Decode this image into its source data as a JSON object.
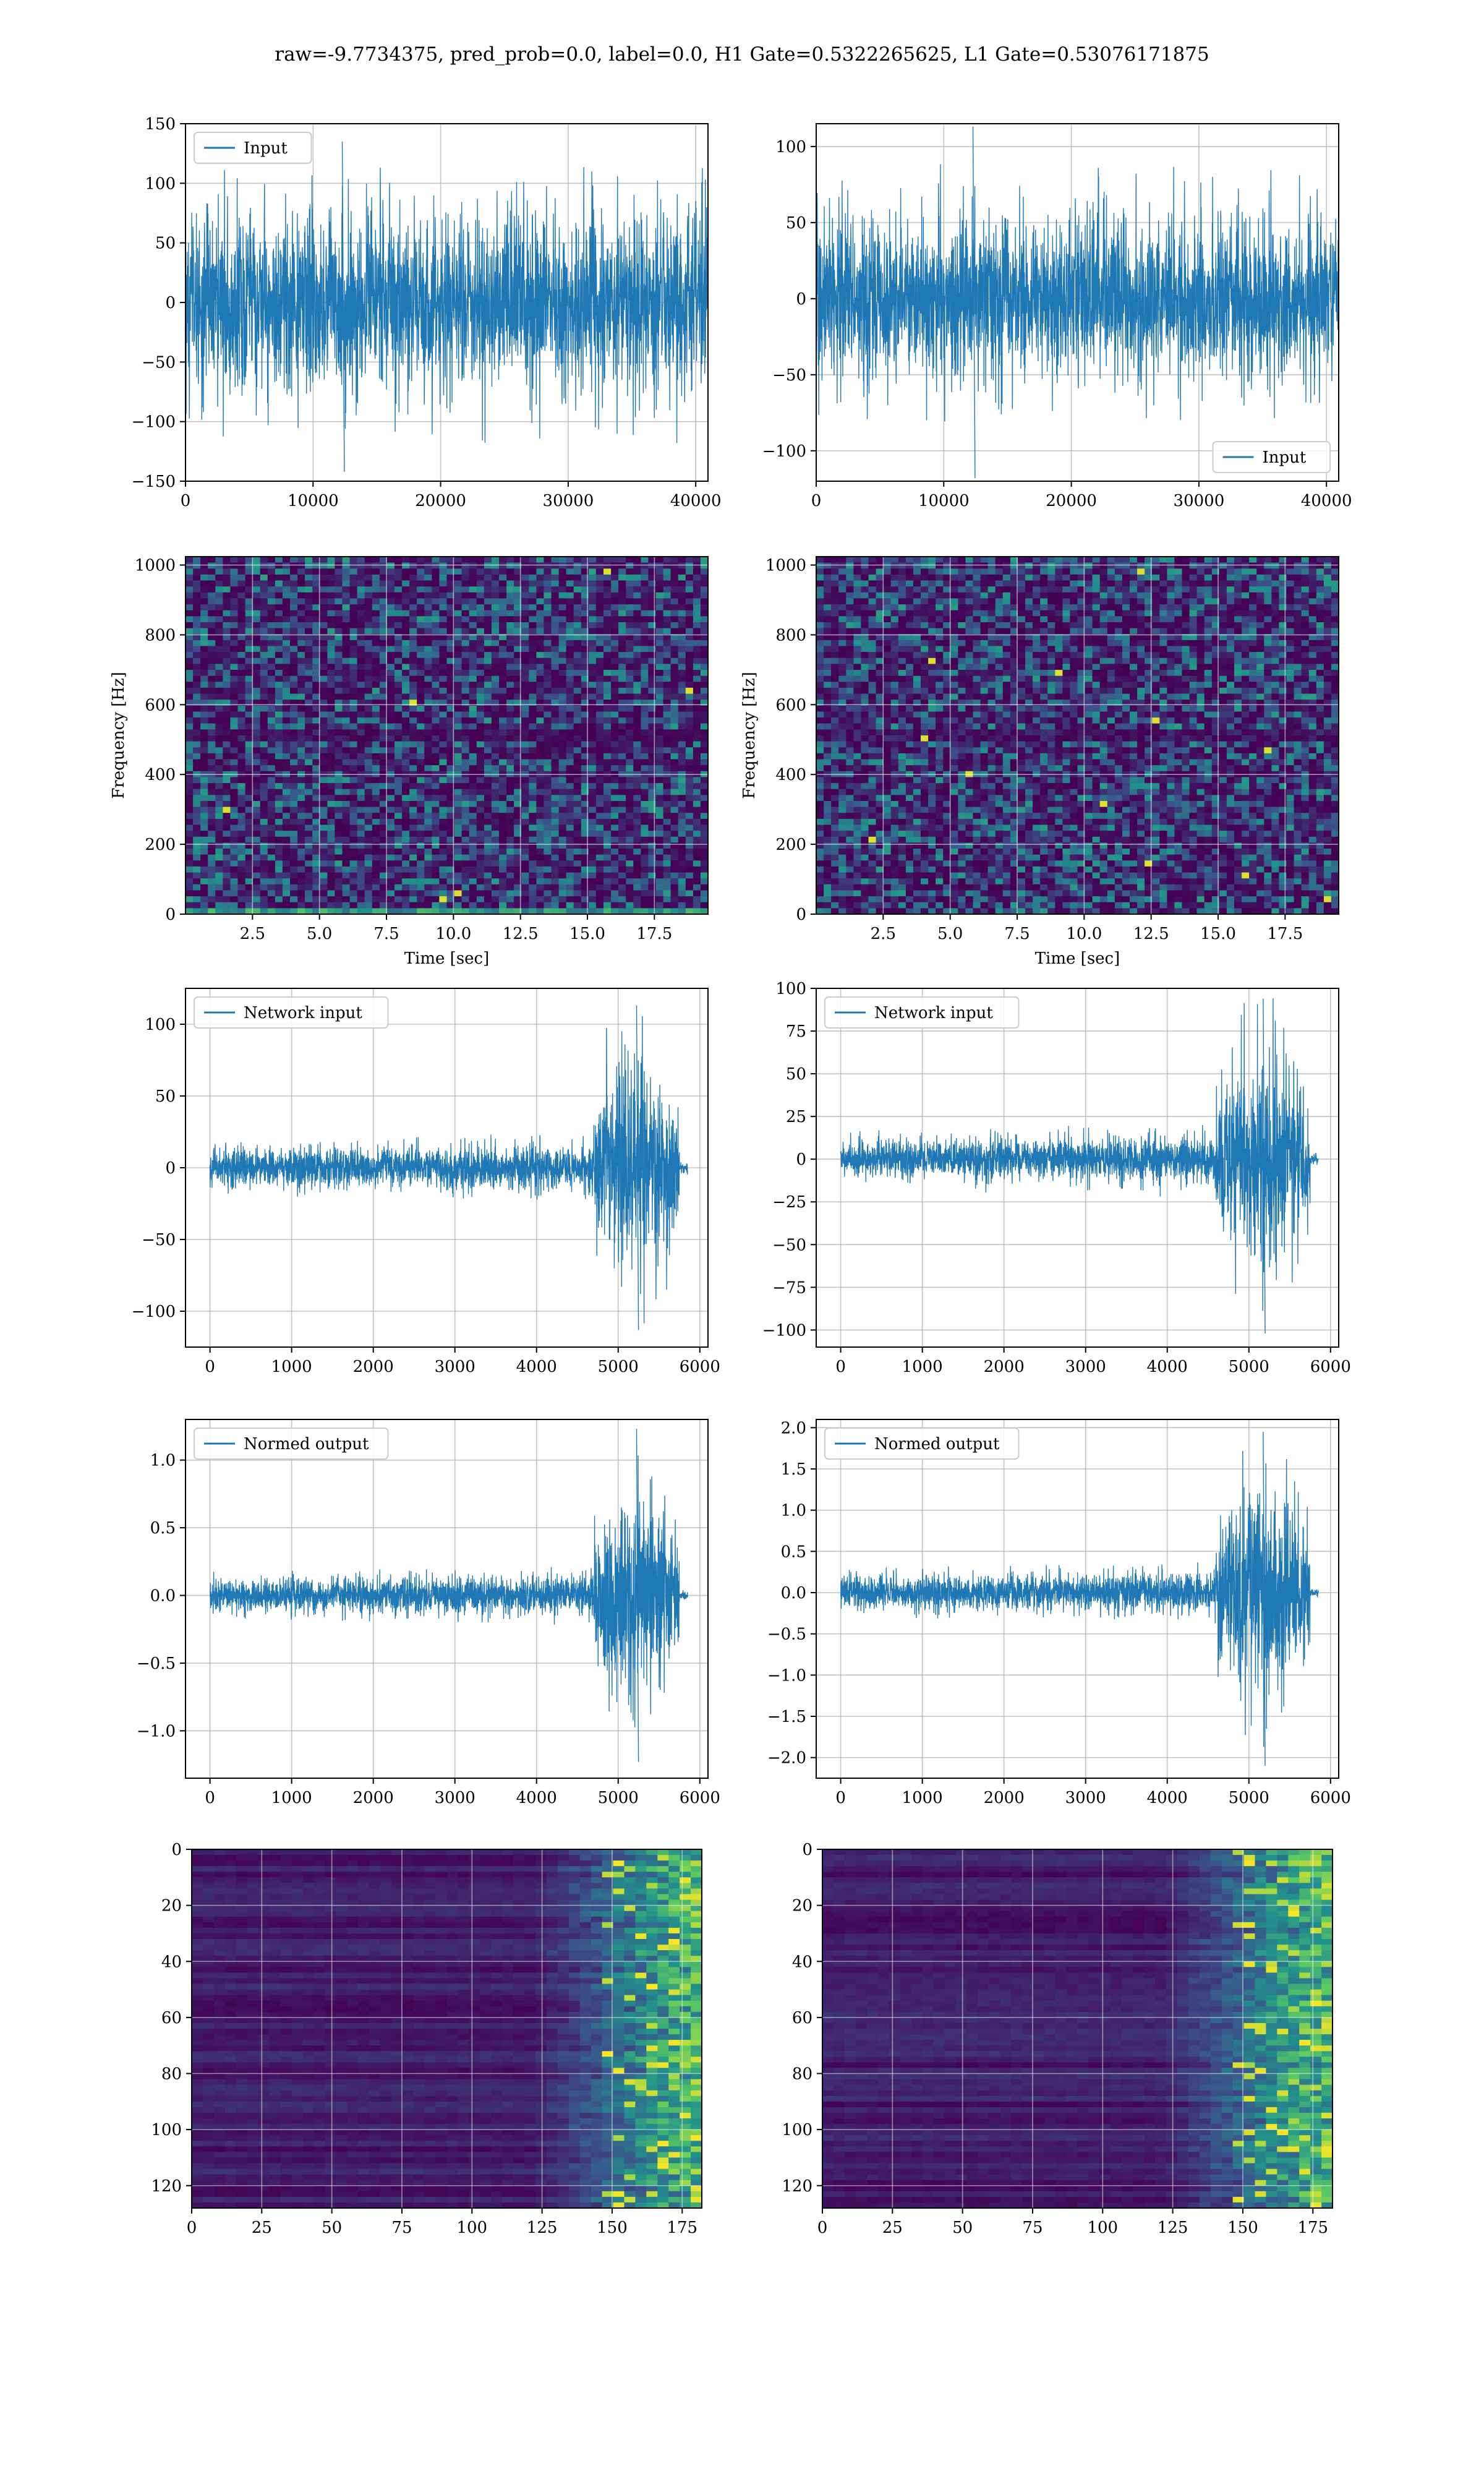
{
  "figure_title": "raw=-9.7734375, pred_prob=0.0, label=0.0, H1 Gate=0.5322265625, L1 Gate=0.53076171875",
  "colors": {
    "line": "#1f77b4",
    "grid": "#b0b0b0",
    "viridis_dark": "#440154",
    "viridis_mid": "#21918c",
    "viridis_bright": "#fde725"
  },
  "chart_data": [
    {
      "type": "line",
      "id": "h1-input",
      "legend": "Input",
      "legend_loc": "upper left",
      "xlim": [
        0,
        40960
      ],
      "ylim": [
        -150,
        150
      ],
      "xticks": [
        0,
        10000,
        20000,
        30000,
        40000
      ],
      "yticks": [
        -150,
        -100,
        -50,
        0,
        50,
        100,
        150
      ],
      "xticklabels": [
        "0",
        "10000",
        "20000",
        "30000",
        "40000"
      ],
      "yticklabels": [
        "−150",
        "−100",
        "−50",
        "0",
        "50",
        "100",
        "150"
      ],
      "grid": true,
      "series": [
        {
          "name": "Input",
          "envelope": {
            "x_end": 40960,
            "typical_amp": 85,
            "peak_max": 135,
            "peak_min": -142
          }
        }
      ]
    },
    {
      "type": "line",
      "id": "l1-input",
      "legend": "Input",
      "legend_loc": "lower right",
      "xlim": [
        0,
        40960
      ],
      "ylim": [
        -120,
        115
      ],
      "xticks": [
        0,
        10000,
        20000,
        30000,
        40000
      ],
      "yticks": [
        -100,
        -50,
        0,
        50,
        100
      ],
      "xticklabels": [
        "0",
        "10000",
        "20000",
        "30000",
        "40000"
      ],
      "yticklabels": [
        "−100",
        "−50",
        "0",
        "50",
        "100"
      ],
      "grid": true,
      "series": [
        {
          "name": "Input",
          "envelope": {
            "x_end": 40960,
            "typical_amp": 60,
            "peak_max": 113,
            "peak_min": -118
          }
        }
      ]
    },
    {
      "type": "heatmap",
      "id": "h1-spectrogram",
      "xlabel": "Time [sec]",
      "ylabel": "Frequency [Hz]",
      "xlim": [
        0,
        19.5
      ],
      "ylim": [
        0,
        1024
      ],
      "xticks": [
        2.5,
        5.0,
        7.5,
        10.0,
        12.5,
        15.0,
        17.5
      ],
      "yticks": [
        0,
        200,
        400,
        600,
        800,
        1000
      ],
      "xticklabels": [
        "2.5",
        "5.0",
        "7.5",
        "10.0",
        "12.5",
        "15.0",
        "17.5"
      ],
      "yticklabels": [
        "0",
        "200",
        "400",
        "600",
        "800",
        "1000"
      ],
      "colormap": "viridis",
      "grid": true
    },
    {
      "type": "heatmap",
      "id": "l1-spectrogram",
      "xlabel": "Time [sec]",
      "ylabel": "Frequency [Hz]",
      "xlim": [
        0,
        19.5
      ],
      "ylim": [
        0,
        1024
      ],
      "xticks": [
        2.5,
        5.0,
        7.5,
        10.0,
        12.5,
        15.0,
        17.5
      ],
      "yticks": [
        0,
        200,
        400,
        600,
        800,
        1000
      ],
      "xticklabels": [
        "2.5",
        "5.0",
        "7.5",
        "10.0",
        "12.5",
        "15.0",
        "17.5"
      ],
      "yticklabels": [
        "0",
        "200",
        "400",
        "600",
        "800",
        "1000"
      ],
      "colormap": "viridis",
      "grid": true
    },
    {
      "type": "line",
      "id": "h1-network-input",
      "legend": "Network input",
      "legend_loc": "upper left",
      "xlim": [
        -300,
        6100
      ],
      "ylim": [
        -125,
        125
      ],
      "xticks": [
        0,
        1000,
        2000,
        3000,
        4000,
        5000,
        6000
      ],
      "yticks": [
        -100,
        -50,
        0,
        50,
        100
      ],
      "xticklabels": [
        "0",
        "1000",
        "2000",
        "3000",
        "4000",
        "5000",
        "6000"
      ],
      "yticklabels": [
        "−100",
        "−50",
        "0",
        "50",
        "100"
      ],
      "grid": true,
      "series": [
        {
          "name": "Network input",
          "envelope": {
            "x_end": 5850,
            "burst_start": 4700,
            "burst_end": 5750,
            "base_amp": 14,
            "burst_amp": 85,
            "peak_max": 113,
            "peak_min": -113
          }
        }
      ]
    },
    {
      "type": "line",
      "id": "l1-network-input",
      "legend": "Network input",
      "legend_loc": "upper left",
      "xlim": [
        -300,
        6100
      ],
      "ylim": [
        -110,
        100
      ],
      "xticks": [
        0,
        1000,
        2000,
        3000,
        4000,
        5000,
        6000
      ],
      "yticks": [
        -100,
        -75,
        -50,
        -25,
        0,
        25,
        50,
        75,
        100
      ],
      "xticklabels": [
        "0",
        "1000",
        "2000",
        "3000",
        "4000",
        "5000",
        "6000"
      ],
      "yticklabels": [
        "−100",
        "−75",
        "−50",
        "−25",
        "0",
        "25",
        "50",
        "75",
        "100"
      ],
      "grid": true,
      "series": [
        {
          "name": "Network input",
          "envelope": {
            "x_end": 5850,
            "burst_start": 4600,
            "burst_end": 5750,
            "base_amp": 12,
            "burst_amp": 70,
            "peak_max": 94,
            "peak_min": -102
          }
        }
      ]
    },
    {
      "type": "line",
      "id": "h1-normed-output",
      "legend": "Normed output",
      "legend_loc": "upper left",
      "xlim": [
        -300,
        6100
      ],
      "ylim": [
        -1.35,
        1.3
      ],
      "xticks": [
        0,
        1000,
        2000,
        3000,
        4000,
        5000,
        6000
      ],
      "yticks": [
        -1.0,
        -0.5,
        0.0,
        0.5,
        1.0
      ],
      "xticklabels": [
        "0",
        "1000",
        "2000",
        "3000",
        "4000",
        "5000",
        "6000"
      ],
      "yticklabels": [
        "−1.0",
        "−0.5",
        "0.0",
        "0.5",
        "1.0"
      ],
      "grid": true,
      "series": [
        {
          "name": "Normed output",
          "envelope": {
            "x_end": 5850,
            "burst_start": 4700,
            "burst_end": 5750,
            "base_amp": 0.13,
            "burst_amp": 0.8,
            "peak_max": 1.23,
            "peak_min": -1.23
          }
        }
      ]
    },
    {
      "type": "line",
      "id": "l1-normed-output",
      "legend": "Normed output",
      "legend_loc": "upper left",
      "xlim": [
        -300,
        6100
      ],
      "ylim": [
        -2.25,
        2.1
      ],
      "xticks": [
        0,
        1000,
        2000,
        3000,
        4000,
        5000,
        6000
      ],
      "yticks": [
        -2.0,
        -1.5,
        -1.0,
        -0.5,
        0.0,
        0.5,
        1.0,
        1.5,
        2.0
      ],
      "xticklabels": [
        "0",
        "1000",
        "2000",
        "3000",
        "4000",
        "5000",
        "6000"
      ],
      "yticklabels": [
        "−2.0",
        "−1.5",
        "−1.0",
        "−0.5",
        "0.0",
        "0.5",
        "1.0",
        "1.5",
        "2.0"
      ],
      "grid": true,
      "series": [
        {
          "name": "Normed output",
          "envelope": {
            "x_end": 5850,
            "burst_start": 4600,
            "burst_end": 5750,
            "base_amp": 0.22,
            "burst_amp": 1.45,
            "peak_max": 1.95,
            "peak_min": -2.1
          }
        }
      ]
    },
    {
      "type": "heatmap",
      "id": "h1-feature-map",
      "xlim": [
        0,
        182
      ],
      "ylim": [
        128,
        0
      ],
      "xticks": [
        0,
        25,
        50,
        75,
        100,
        125,
        150,
        175
      ],
      "yticks": [
        0,
        20,
        40,
        60,
        80,
        100,
        120
      ],
      "xticklabels": [
        "0",
        "25",
        "50",
        "75",
        "100",
        "125",
        "150",
        "175"
      ],
      "yticklabels": [
        "0",
        "20",
        "40",
        "60",
        "80",
        "100",
        "120"
      ],
      "colormap": "viridis",
      "grid": true,
      "rows": 128,
      "cols": 182,
      "activity_onset_col": 120
    },
    {
      "type": "heatmap",
      "id": "l1-feature-map",
      "xlim": [
        0,
        182
      ],
      "ylim": [
        128,
        0
      ],
      "xticks": [
        0,
        25,
        50,
        75,
        100,
        125,
        150,
        175
      ],
      "yticks": [
        0,
        20,
        40,
        60,
        80,
        100,
        120
      ],
      "xticklabels": [
        "0",
        "25",
        "50",
        "75",
        "100",
        "125",
        "150",
        "175"
      ],
      "yticklabels": [
        "0",
        "20",
        "40",
        "60",
        "80",
        "100",
        "120"
      ],
      "colormap": "viridis",
      "grid": true,
      "rows": 128,
      "cols": 182,
      "activity_onset_col": 120
    }
  ]
}
